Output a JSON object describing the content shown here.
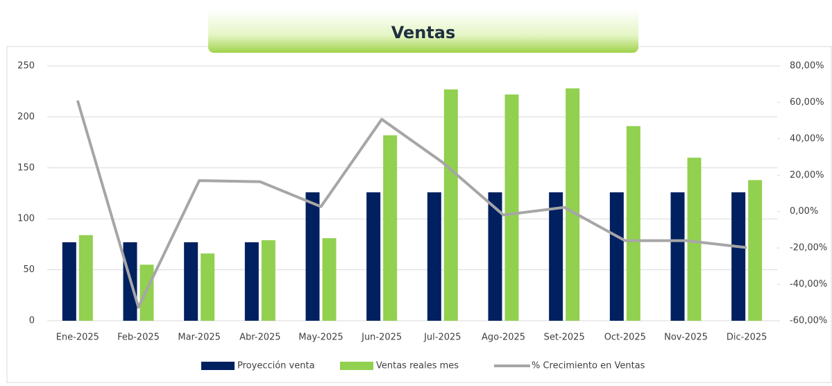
{
  "chart_data": {
    "type": "bar",
    "title": "Ventas",
    "categories": [
      "Ene-2025",
      "Feb-2025",
      "Mar-2025",
      "Abr-2025",
      "May-2025",
      "Jun-2025",
      "Jul-2025",
      "Ago-2025",
      "Set-2025",
      "Oct-2025",
      "Nov-2025",
      "Dic-2025"
    ],
    "series": [
      {
        "name": "Proyección venta",
        "color": "#002060",
        "values": [
          77,
          77,
          77,
          77,
          126,
          126,
          126,
          126,
          126,
          126,
          126,
          126
        ]
      },
      {
        "name": "Ventas reales mes",
        "color": "#92d050",
        "values": [
          84,
          55,
          66,
          79,
          81,
          182,
          227,
          222,
          228,
          191,
          160,
          138
        ]
      },
      {
        "name": "% Crecimiento en Ventas",
        "color": "#a6a6a6",
        "type": "line",
        "axis": "y2",
        "values": [
          61,
          -52.6,
          17,
          16.4,
          2.7,
          50.7,
          27,
          -1.9,
          2.3,
          -16,
          -16,
          -19.8
        ]
      }
    ],
    "ylim": [
      0,
      250
    ],
    "yticks": [
      0,
      50,
      100,
      150,
      200,
      250
    ],
    "y2lim": [
      -60,
      80
    ],
    "y2ticks": [
      {
        "value": -60,
        "label": "-60,00%"
      },
      {
        "value": -40,
        "label": "-40,00%"
      },
      {
        "value": -20,
        "label": "-20,00%"
      },
      {
        "value": 0,
        "label": "0,00%"
      },
      {
        "value": 20,
        "label": "20,00%"
      },
      {
        "value": 40,
        "label": "40,00%"
      },
      {
        "value": 60,
        "label": "60,00%"
      },
      {
        "value": 80,
        "label": "80,00%"
      }
    ],
    "grid": true,
    "legend": "bottom"
  }
}
